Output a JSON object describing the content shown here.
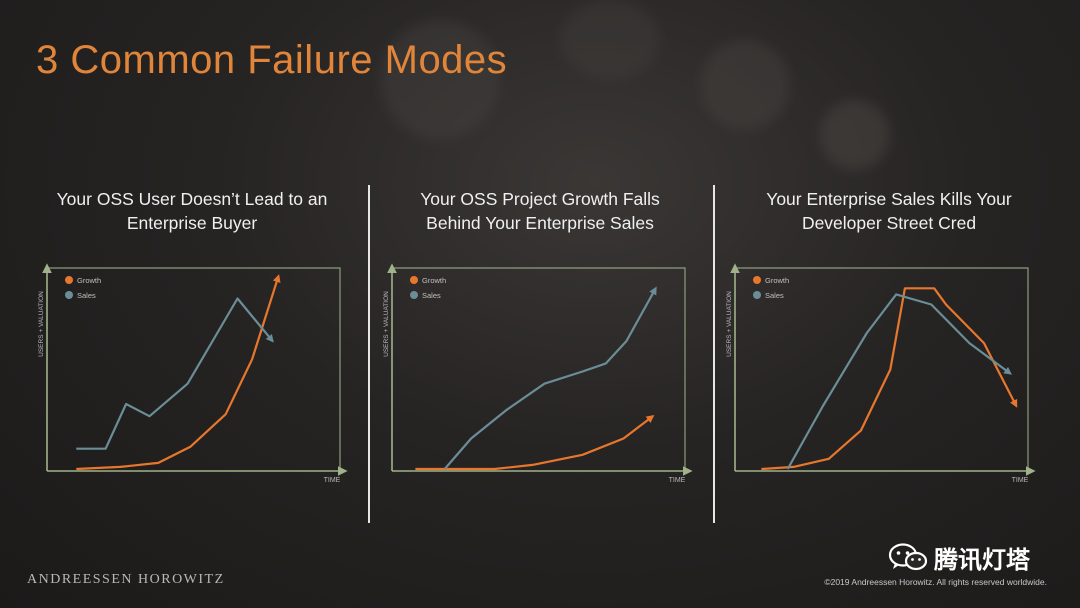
{
  "title": "3 Common Failure Modes",
  "colors": {
    "title": "#e0853a",
    "growth": "#e8772e",
    "sales": "#6b8d98",
    "axis": "#9fb28a"
  },
  "panels": [
    {
      "title_line1": "Your OSS User Doesn’t Lead to an",
      "title_line2": "Enterprise Buyer"
    },
    {
      "title_line1": "Your OSS Project Growth Falls",
      "title_line2": "Behind Your Enterprise Sales"
    },
    {
      "title_line1": "Your Enterprise Sales Kills Your",
      "title_line2": "Developer Street Cred"
    }
  ],
  "chart_data": [
    {
      "type": "line",
      "xlabel": "TIME",
      "ylabel": "USERS + VALUATION",
      "xlim": [
        0,
        10
      ],
      "ylim": [
        0,
        10
      ],
      "grid": false,
      "legend": "top-left",
      "series": [
        {
          "name": "Growth",
          "color": "#e8772e",
          "x": [
            1,
            2.5,
            3.8,
            4.9,
            6.1,
            7,
            7.9
          ],
          "y": [
            0.1,
            0.2,
            0.4,
            1.2,
            2.8,
            5.5,
            9.6
          ]
        },
        {
          "name": "Sales",
          "color": "#6b8d98",
          "x": [
            1,
            2,
            2.7,
            3.5,
            4.8,
            6.5,
            7.7
          ],
          "y": [
            1.1,
            1.1,
            3.3,
            2.7,
            4.3,
            8.5,
            6.4
          ]
        }
      ]
    },
    {
      "type": "line",
      "xlabel": "TIME",
      "ylabel": "USERS + VALUATION",
      "xlim": [
        0,
        10
      ],
      "ylim": [
        0,
        10
      ],
      "grid": false,
      "legend": "top-left",
      "series": [
        {
          "name": "Growth",
          "color": "#e8772e",
          "x": [
            0.8,
            2,
            3.5,
            4.8,
            6.5,
            7.9,
            8.9
          ],
          "y": [
            0.1,
            0.1,
            0.1,
            0.3,
            0.8,
            1.6,
            2.7
          ]
        },
        {
          "name": "Sales",
          "color": "#6b8d98",
          "x": [
            1.8,
            2.7,
            3.9,
            5.2,
            6.5,
            7.3,
            8,
            9
          ],
          "y": [
            0.1,
            1.6,
            3,
            4.3,
            4.9,
            5.3,
            6.4,
            9
          ]
        }
      ]
    },
    {
      "type": "line",
      "xlabel": "TIME",
      "ylabel": "USERS + VALUATION",
      "xlim": [
        0,
        10
      ],
      "ylim": [
        0,
        10
      ],
      "grid": false,
      "legend": "top-left",
      "series": [
        {
          "name": "Growth",
          "color": "#e8772e",
          "x": [
            0.9,
            2,
            3.2,
            4.3,
            5.3,
            5.8,
            6.8,
            7.2,
            8.5,
            9.6
          ],
          "y": [
            0.1,
            0.2,
            0.6,
            2,
            5,
            9,
            9,
            8.2,
            6.3,
            3.2
          ]
        },
        {
          "name": "Sales",
          "color": "#6b8d98",
          "x": [
            1.8,
            3,
            4.5,
            5.5,
            6.7,
            8,
            9.4
          ],
          "y": [
            0.1,
            3.2,
            6.8,
            8.7,
            8.2,
            6.3,
            4.8
          ]
        }
      ]
    }
  ],
  "footer": {
    "brand": "ANDREESSEN HOROWITZ",
    "wechat_name": "腾讯灯塔",
    "copyright": "©2019 Andreessen Horowitz. All rights reserved worldwide."
  }
}
